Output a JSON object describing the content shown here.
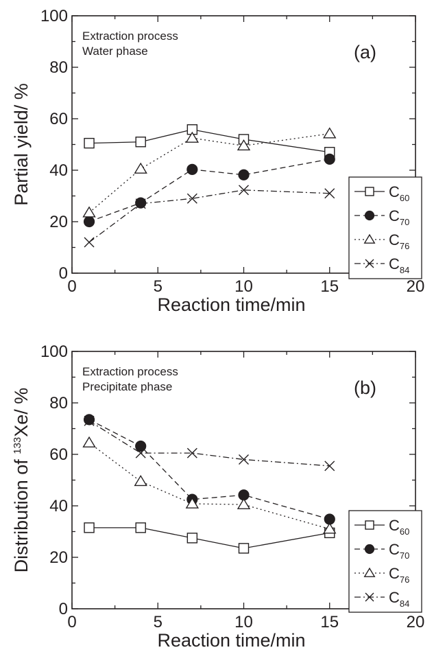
{
  "chart_data": [
    {
      "type": "line",
      "panel_label": "(a)",
      "annotations": [
        "Extraction process",
        "Water phase"
      ],
      "xlabel": "Reaction time/min",
      "ylabel": "Partial yield/ %",
      "xlim": [
        0,
        20
      ],
      "ylim": [
        0,
        100
      ],
      "xticks": [
        0,
        5,
        10,
        15,
        20
      ],
      "yticks": [
        0,
        20,
        40,
        60,
        80,
        100
      ],
      "legend_position": "right",
      "series": [
        {
          "name": "C",
          "sub": "60",
          "marker": "open-square",
          "dash": "solid",
          "x": [
            1,
            4,
            7,
            10,
            15
          ],
          "y": [
            50.5,
            51,
            55.8,
            52,
            47
          ]
        },
        {
          "name": "C",
          "sub": "70",
          "marker": "filled-circle",
          "dash": "dashed",
          "x": [
            1,
            4,
            7,
            10,
            15
          ],
          "y": [
            20,
            27.3,
            40.3,
            38.2,
            44.3
          ]
        },
        {
          "name": "C",
          "sub": "76",
          "marker": "open-triangle",
          "dash": "dotted",
          "x": [
            1,
            4,
            7,
            10,
            15
          ],
          "y": [
            23.5,
            40.5,
            52.5,
            49.5,
            54.2
          ]
        },
        {
          "name": "C",
          "sub": "84",
          "marker": "cross",
          "dash": "dashdot",
          "x": [
            1,
            4,
            7,
            10,
            15
          ],
          "y": [
            12,
            27,
            29,
            32.3,
            31
          ]
        }
      ]
    },
    {
      "type": "line",
      "panel_label": "(b)",
      "annotations": [
        "Extraction process",
        "Precipitate phase"
      ],
      "xlabel": "Reaction time/min",
      "ylabel_parts": [
        "Distribution of ",
        "133",
        "Xe/ %"
      ],
      "xlim": [
        0,
        20
      ],
      "ylim": [
        0,
        100
      ],
      "xticks": [
        0,
        5,
        10,
        15,
        20
      ],
      "yticks": [
        0,
        20,
        40,
        60,
        80,
        100
      ],
      "legend_position": "bottom-right",
      "series": [
        {
          "name": "C",
          "sub": "60",
          "marker": "open-square",
          "dash": "solid",
          "x": [
            1,
            4,
            7,
            10,
            15
          ],
          "y": [
            31.5,
            31.5,
            27.5,
            23.5,
            29.5
          ]
        },
        {
          "name": "C",
          "sub": "70",
          "marker": "filled-circle",
          "dash": "dashed",
          "x": [
            1,
            4,
            7,
            10,
            15
          ],
          "y": [
            73.5,
            63.2,
            42.5,
            44.2,
            34.8
          ]
        },
        {
          "name": "C",
          "sub": "76",
          "marker": "open-triangle",
          "dash": "dotted",
          "x": [
            1,
            4,
            7,
            10,
            15
          ],
          "y": [
            64.5,
            49.5,
            40.8,
            40.5,
            31
          ]
        },
        {
          "name": "C",
          "sub": "84",
          "marker": "cross",
          "dash": "dashdot",
          "x": [
            1,
            4,
            7,
            10,
            15
          ],
          "y": [
            73,
            60.5,
            60.5,
            58,
            55.5
          ]
        }
      ]
    }
  ]
}
